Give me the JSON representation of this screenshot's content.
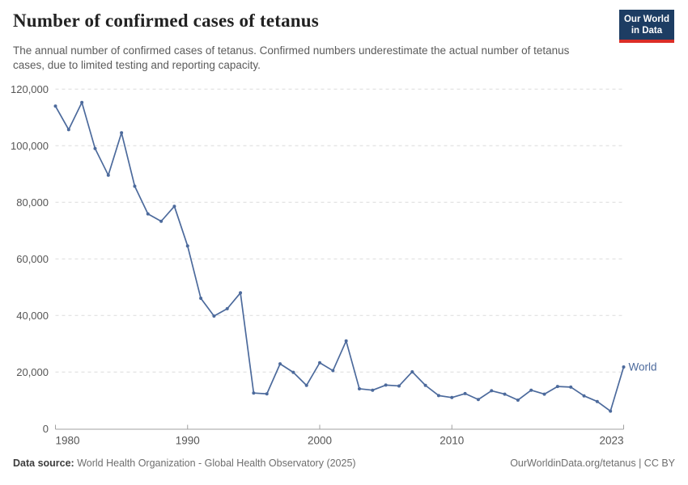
{
  "header": {
    "title": "Number of confirmed cases of tetanus",
    "subtitle": "The annual number of confirmed cases of tetanus. Confirmed numbers underestimate the actual number of tetanus cases, due to limited testing and reporting capacity.",
    "logo": {
      "line1": "Our World",
      "line2": "in Data"
    }
  },
  "chart_data": {
    "type": "line",
    "title": "Number of confirmed cases of tetanus",
    "x": [
      1980,
      1981,
      1982,
      1983,
      1984,
      1985,
      1986,
      1987,
      1988,
      1989,
      1990,
      1991,
      1992,
      1993,
      1994,
      1995,
      1996,
      1997,
      1998,
      1999,
      2000,
      2001,
      2002,
      2003,
      2004,
      2005,
      2006,
      2007,
      2008,
      2009,
      2010,
      2011,
      2012,
      2013,
      2014,
      2015,
      2016,
      2017,
      2018,
      2019,
      2020,
      2021,
      2022,
      2023
    ],
    "series": [
      {
        "name": "World",
        "color": "#4c6a9c",
        "values": [
          114000,
          105700,
          115300,
          99000,
          89600,
          104600,
          85700,
          75900,
          73300,
          78600,
          64600,
          46100,
          39800,
          42400,
          48000,
          12600,
          12300,
          22900,
          19900,
          15300,
          23300,
          20500,
          31000,
          14100,
          13600,
          15400,
          15100,
          20100,
          15300,
          11700,
          11000,
          12400,
          10300,
          13400,
          12200,
          10100,
          13600,
          12200,
          14900,
          14700,
          11600,
          9600,
          6200,
          21800
        ]
      }
    ],
    "xlabel": "",
    "ylabel": "",
    "xlim": [
      1980,
      2023
    ],
    "ylim": [
      0,
      120000
    ],
    "xticks": [
      1980,
      1990,
      2000,
      2010,
      2023
    ],
    "xtick_labels": [
      "1980",
      "1990",
      "2000",
      "2010",
      "2023"
    ],
    "yticks": [
      0,
      20000,
      40000,
      60000,
      80000,
      100000,
      120000
    ],
    "ytick_labels": [
      "0",
      "20,000",
      "40,000",
      "60,000",
      "80,000",
      "100,000",
      "120,000"
    ],
    "grid": "horizontal dashed",
    "legend_position": "end-of-line label",
    "end_label": "World"
  },
  "footer": {
    "source_label": "Data source:",
    "source_text": " World Health Organization - Global Health Observatory (2025)",
    "credit": "OurWorldinData.org/tetanus | CC BY"
  },
  "colors": {
    "line": "#4c6a9c",
    "grid": "#dcdcdc",
    "axis": "#a0a0a0",
    "tick_label": "#565656",
    "title": "#222222",
    "subtitle": "#5b5b5b",
    "logo_bg": "#1d3d63",
    "logo_stripe": "#dc2e27"
  }
}
